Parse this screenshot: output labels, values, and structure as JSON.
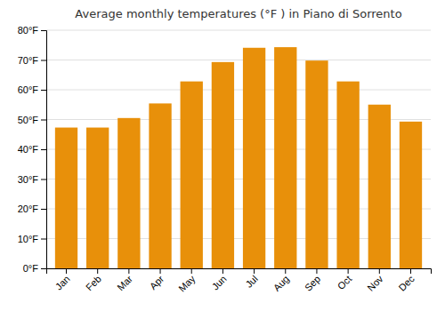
{
  "chart_data": {
    "type": "bar",
    "title": "Average monthly temperatures (°F ) in Piano di Sorrento",
    "categories": [
      "Jan",
      "Feb",
      "Mar",
      "Apr",
      "May",
      "Jun",
      "Jul",
      "Aug",
      "Sep",
      "Oct",
      "Nov",
      "Dec"
    ],
    "values": [
      47.3,
      47.3,
      50.5,
      55.4,
      62.8,
      69.3,
      74.1,
      74.3,
      69.8,
      62.8,
      55.0,
      49.3
    ],
    "color": "#E8900A",
    "ylim": [
      0,
      80
    ],
    "yticks": [
      {
        "value": 0,
        "label": "0°F"
      },
      {
        "value": 10,
        "label": "10°F"
      },
      {
        "value": 20,
        "label": "20°F"
      },
      {
        "value": 30,
        "label": "30°F"
      },
      {
        "value": 40,
        "label": "40°F"
      },
      {
        "value": 50,
        "label": "50°F"
      },
      {
        "value": 60,
        "label": "60°F"
      },
      {
        "value": 70,
        "label": "70°F"
      },
      {
        "value": 80,
        "label": "80°F"
      }
    ],
    "grid": true
  }
}
